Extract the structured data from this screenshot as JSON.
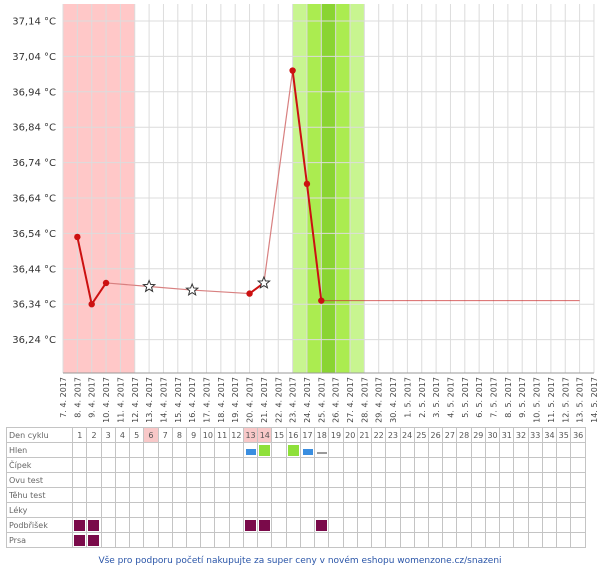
{
  "chart_data": {
    "type": "line",
    "ylabel_unit": "°C",
    "y_ticks": [
      "36,24 °C",
      "36,34 °C",
      "36,44 °C",
      "36,54 °C",
      "36,64 °C",
      "36,74 °C",
      "36,84 °C",
      "36,94 °C",
      "37,04 °C",
      "37,14 °C"
    ],
    "ylim": [
      36.17,
      37.19
    ],
    "x_ticks": [
      "7. 4. 2017",
      "8. 4. 2017",
      "9. 4. 2017",
      "10. 4. 2017",
      "11. 4. 2017",
      "12. 4. 2017",
      "13. 4. 2017",
      "14. 4. 2017",
      "15. 4. 2017",
      "16. 4. 2017",
      "17. 4. 2017",
      "18. 4. 2017",
      "19. 4. 2017",
      "20. 4. 2017",
      "21. 4. 2017",
      "22. 4. 2017",
      "23. 4. 2017",
      "24. 4. 2017",
      "25. 4. 2017",
      "26. 4. 2017",
      "27. 4. 2017",
      "28. 4. 2017",
      "29. 4. 2017",
      "30. 4. 2017",
      "1. 5. 2017",
      "2. 5. 2017",
      "3. 5. 2017",
      "4. 5. 2017",
      "5. 5. 2017",
      "6. 5. 2017",
      "7. 5. 2017",
      "8. 5. 2017",
      "9. 5. 2017",
      "10. 5. 2017",
      "11. 5. 2017",
      "12. 5. 2017",
      "13. 5. 2017",
      "14. 5. 2017"
    ],
    "series": [
      {
        "points": [
          {
            "x": "8. 4. 2017",
            "y": 36.53,
            "marker": "dot"
          },
          {
            "x": "9. 4. 2017",
            "y": 36.34,
            "marker": "dot"
          },
          {
            "x": "10. 4. 2017",
            "y": 36.4,
            "marker": "dot"
          },
          {
            "x": "13. 4. 2017",
            "y": 36.39,
            "marker": "star"
          },
          {
            "x": "16. 4. 2017",
            "y": 36.38,
            "marker": "star"
          },
          {
            "x": "20. 4. 2017",
            "y": 36.37,
            "marker": "dot"
          },
          {
            "x": "21. 4. 2017",
            "y": 36.4,
            "marker": "star"
          },
          {
            "x": "23. 4. 2017",
            "y": 37.0,
            "marker": "dot"
          },
          {
            "x": "24. 4. 2017",
            "y": 36.68,
            "marker": "dot"
          },
          {
            "x": "25. 4. 2017",
            "y": 36.35,
            "marker": "dot"
          }
        ],
        "color": "#cc1111"
      }
    ],
    "reference_line": {
      "y": 36.35,
      "x_start": "25. 4. 2017",
      "x_end": "13. 5. 2017",
      "color": "#cc3333"
    },
    "bands": [
      {
        "x_start": "7. 4. 2017",
        "x_end": "12. 4. 2017",
        "color": "#ffc8c8"
      },
      {
        "x_start": "23. 4. 2017",
        "x_end": "28. 4. 2017",
        "color": "#c8f590"
      },
      {
        "x_start": "24. 4. 2017",
        "x_end": "27. 4. 2017",
        "color": "#abec50"
      },
      {
        "x_start": "25. 4. 2017",
        "x_end": "26. 4. 2017",
        "color": "#8ad432"
      }
    ],
    "grid": true
  },
  "cycle_table": {
    "row_labels": [
      "Den cyklu",
      "Hlen",
      "Čípek",
      "Ovu test",
      "Těhu test",
      "Léky",
      "Podbřišek",
      "Prsa"
    ],
    "days": [
      "1",
      "2",
      "3",
      "4",
      "5",
      "6",
      "7",
      "8",
      "9",
      "10",
      "11",
      "12",
      "13",
      "14",
      "15",
      "16",
      "17",
      "18",
      "19",
      "20",
      "21",
      "22",
      "23",
      "24",
      "25",
      "26",
      "27",
      "28",
      "29",
      "30",
      "31",
      "32",
      "33",
      "34",
      "35",
      "36"
    ],
    "shaded_days": [
      "6",
      "13",
      "14"
    ],
    "hlen_marks": [
      {
        "day": "13",
        "type": "bar",
        "color": "#3a8ee0"
      },
      {
        "day": "14",
        "type": "square",
        "color": "#8ee03a"
      },
      {
        "day": "16",
        "type": "square",
        "color": "#8ee03a"
      },
      {
        "day": "17",
        "type": "bar",
        "color": "#3a8ee0"
      },
      {
        "day": "18",
        "type": "thin",
        "color": "#9a9a9a"
      }
    ],
    "podbrisek_days": [
      "1",
      "2",
      "13",
      "14",
      "18"
    ],
    "prsa_days": [
      "1",
      "2"
    ],
    "mark_color": "#7a0a4a"
  },
  "footer": {
    "text": "Vše pro podporu početí nakupujte za super ceny v novém eshopu womenzone.cz/snazeni"
  }
}
